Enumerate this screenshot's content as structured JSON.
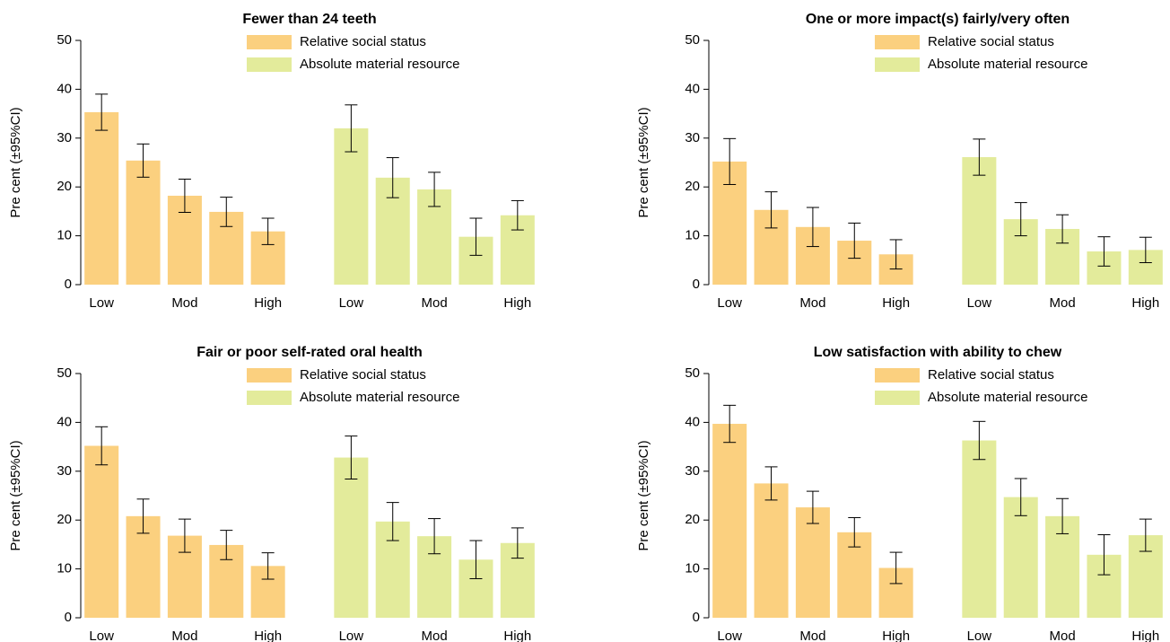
{
  "chart_data": [
    {
      "type": "bar",
      "title": "Fewer than 24 teeth",
      "ylabel": "Pre cent (±95%CI)",
      "categories": [
        "Low",
        null,
        "Mod",
        null,
        "High"
      ],
      "series": [
        {
          "name": "Relative social status",
          "color": "#fbd07f",
          "values": [
            35.3,
            25.4,
            18.2,
            14.9,
            10.9
          ],
          "errors": [
            3.7,
            3.4,
            3.4,
            3.0,
            2.7
          ]
        },
        {
          "name": "Absolute material resource",
          "color": "#e3eb9b",
          "values": [
            32.0,
            21.9,
            19.5,
            9.8,
            14.2
          ],
          "errors": [
            4.8,
            4.1,
            3.5,
            3.8,
            3.0
          ]
        }
      ],
      "ylim": [
        0,
        50
      ],
      "yticks": [
        0,
        10,
        20,
        30,
        40,
        50
      ],
      "legend": "upper right"
    },
    {
      "type": "bar",
      "title": "One or more impact(s) fairly/very often",
      "ylabel": "Pre cent (±95%CI)",
      "categories": [
        "Low",
        null,
        "Mod",
        null,
        "High"
      ],
      "series": [
        {
          "name": "Relative social status",
          "color": "#fbd07f",
          "values": [
            25.2,
            15.3,
            11.8,
            9.0,
            6.2
          ],
          "errors": [
            4.7,
            3.7,
            4.0,
            3.6,
            3.0
          ]
        },
        {
          "name": "Absolute material resource",
          "color": "#e3eb9b",
          "values": [
            26.1,
            13.4,
            11.4,
            6.8,
            7.1
          ],
          "errors": [
            3.7,
            3.4,
            2.9,
            3.0,
            2.6
          ]
        }
      ],
      "ylim": [
        0,
        50
      ],
      "yticks": [
        0,
        10,
        20,
        30,
        40,
        50
      ],
      "legend": "upper right"
    },
    {
      "type": "bar",
      "title": "Fair or poor self-rated oral health",
      "ylabel": "Pre cent (±95%CI)",
      "categories": [
        "Low",
        null,
        "Mod",
        null,
        "High"
      ],
      "series": [
        {
          "name": "Relative social status",
          "color": "#fbd07f",
          "values": [
            35.2,
            20.8,
            16.8,
            14.9,
            10.6
          ],
          "errors": [
            3.9,
            3.5,
            3.4,
            3.0,
            2.7
          ]
        },
        {
          "name": "Absolute material resource",
          "color": "#e3eb9b",
          "values": [
            32.8,
            19.7,
            16.7,
            11.9,
            15.3
          ],
          "errors": [
            4.4,
            3.9,
            3.6,
            3.9,
            3.1
          ]
        }
      ],
      "ylim": [
        0,
        50
      ],
      "yticks": [
        0,
        10,
        20,
        30,
        40,
        50
      ],
      "legend": "upper right"
    },
    {
      "type": "bar",
      "title": "Low satisfaction with ability to chew",
      "ylabel": "Pre cent (±95%CI)",
      "categories": [
        "Low",
        null,
        "Mod",
        null,
        "High"
      ],
      "series": [
        {
          "name": "Relative social status",
          "color": "#fbd07f",
          "values": [
            39.7,
            27.5,
            22.6,
            17.5,
            10.2
          ],
          "errors": [
            3.8,
            3.4,
            3.3,
            3.0,
            3.2
          ]
        },
        {
          "name": "Absolute material resource",
          "color": "#e3eb9b",
          "values": [
            36.3,
            24.7,
            20.8,
            12.9,
            16.9
          ],
          "errors": [
            3.9,
            3.8,
            3.6,
            4.1,
            3.3
          ]
        }
      ],
      "ylim": [
        0,
        50
      ],
      "yticks": [
        0,
        10,
        20,
        30,
        40,
        50
      ],
      "legend": "upper right"
    }
  ]
}
